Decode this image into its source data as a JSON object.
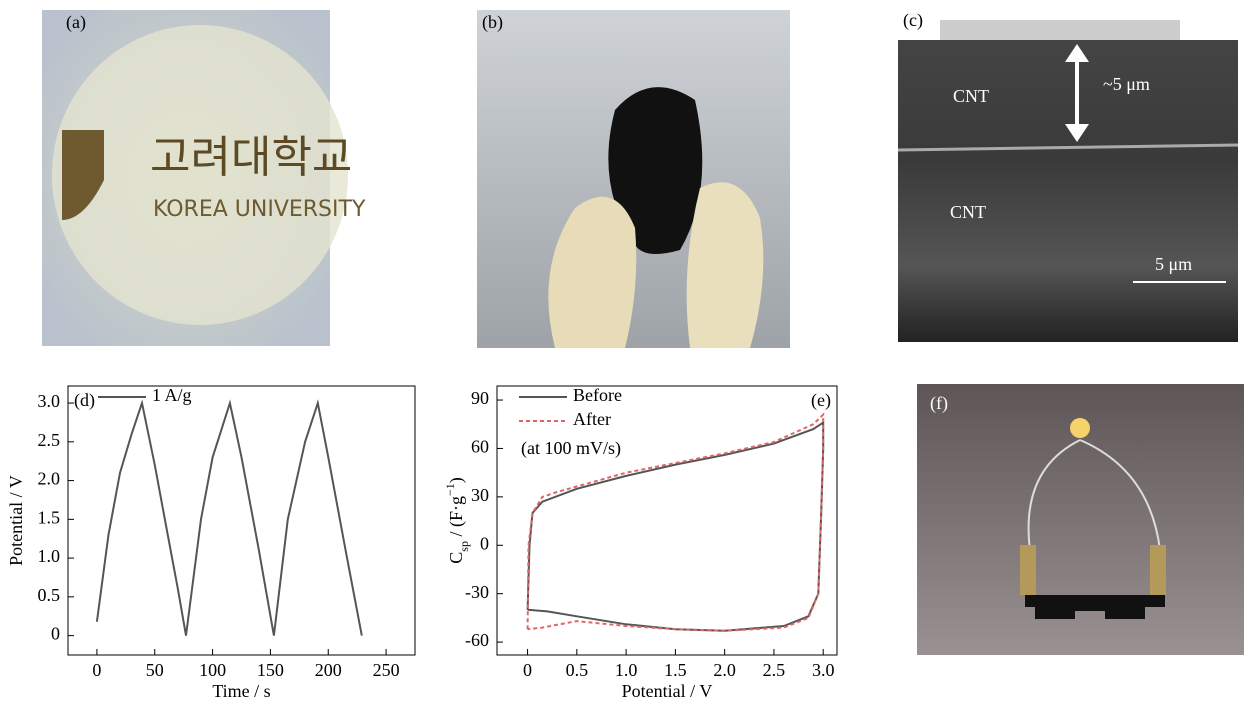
{
  "panels": {
    "a": {
      "label": "(a)",
      "texts": [
        "고려대학교",
        "KOREA UNIVERSITY"
      ]
    },
    "b": {
      "label": "(b)"
    },
    "c": {
      "label": "(c)",
      "texts": [
        "CNT",
        "~5 μm",
        "CNT",
        "5 μm"
      ]
    },
    "f": {
      "label": "(f)"
    }
  },
  "chart_data": [
    {
      "type": "line",
      "panel_label": "(d)",
      "x_label": "Time / s",
      "y_label": "Potential / V",
      "xlim": [
        -25,
        275
      ],
      "xticks": [
        0,
        50,
        100,
        150,
        200,
        250
      ],
      "ylim": [
        -0.25,
        3.22
      ],
      "yticks": [
        0,
        0.5,
        {
          "value": 1,
          "label": "1.0"
        },
        1.5,
        {
          "value": 2,
          "label": "2.0"
        },
        2.5,
        {
          "value": 3,
          "label": "3.0"
        }
      ],
      "series": [
        {
          "name": "1 A/g",
          "color": "#555555",
          "style": "solid",
          "x": [
            0,
            10,
            20,
            30,
            39,
            50,
            60,
            70,
            77,
            90,
            100,
            115,
            125,
            140,
            153,
            165,
            180,
            191,
            200,
            215,
            229
          ],
          "values": [
            0.18,
            1.3,
            2.1,
            2.6,
            3.0,
            2.2,
            1.4,
            0.6,
            0.0,
            1.5,
            2.3,
            3.0,
            2.3,
            1.1,
            0.0,
            1.5,
            2.5,
            3.0,
            2.3,
            1.1,
            0.0
          ]
        }
      ]
    },
    {
      "type": "line",
      "panel_label": "(e)",
      "annotation": "(at 100 mV/s)",
      "x_label": "Potential / V",
      "y_label": [
        "C",
        "sp",
        " / (F·g",
        "−1",
        ")"
      ],
      "xlim": [
        -0.31,
        3.14
      ],
      "xticks": [
        0,
        0.5,
        {
          "value": 1,
          "label": "1.0"
        },
        1.5,
        {
          "value": 2,
          "label": "2.0"
        },
        2.5,
        {
          "value": 3,
          "label": "3.0"
        }
      ],
      "ylim": [
        -68,
        98.7
      ],
      "yticks": [
        -60,
        -30,
        0,
        30,
        60,
        90
      ],
      "series": [
        {
          "name": "Before",
          "color": "#555555",
          "style": "solid",
          "x": [
            0,
            0.02,
            0.05,
            0.15,
            0.5,
            1,
            1.5,
            2,
            2.5,
            2.9,
            3.0,
            3.0,
            2.98,
            2.95,
            2.85,
            2.6,
            2.0,
            1.5,
            1.0,
            0.5,
            0.2,
            0
          ],
          "values": [
            -40,
            0,
            20,
            27,
            35,
            43,
            50,
            56,
            63,
            72,
            76,
            60,
            20,
            -30,
            -44,
            -50,
            -53,
            -52,
            -49,
            -44,
            -41,
            -40
          ]
        },
        {
          "name": "After",
          "color": "#e06666",
          "style": "dashed",
          "x": [
            0,
            0.01,
            0.05,
            0.15,
            0.3,
            1,
            1.5,
            2,
            2.5,
            2.9,
            3.0,
            3.0,
            2.98,
            2.95,
            2.85,
            2.6,
            2,
            1.5,
            1,
            0.5,
            0.15,
            0
          ],
          "values": [
            -52,
            0,
            20,
            30,
            33,
            45,
            51,
            57,
            64,
            75,
            81,
            60,
            20,
            -30,
            -45,
            -51,
            -53,
            -52,
            -50,
            -47,
            -51,
            -52
          ]
        }
      ]
    }
  ]
}
